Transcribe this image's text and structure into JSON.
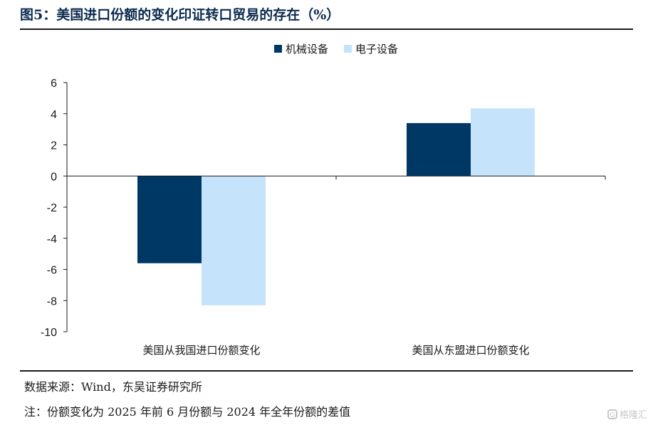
{
  "header": {
    "title": "图5：美国进口份额的变化印证转口贸易的存在（%）"
  },
  "chart_data": {
    "type": "bar",
    "title": "图5：美国进口份额的变化印证转口贸易的存在（%）",
    "categories": [
      "美国从我国进口份额变化",
      "美国从东盟进口份额变化"
    ],
    "series": [
      {
        "name": "机械设备",
        "values": [
          -5.6,
          3.4
        ],
        "color": "#003865"
      },
      {
        "name": "电子设备",
        "values": [
          -8.3,
          4.35
        ],
        "color": "#c5e3fa"
      }
    ],
    "xlabel": "",
    "ylabel": "",
    "ylim": [
      -10,
      6
    ],
    "yticks": [
      6,
      4,
      2,
      0,
      -2,
      -4,
      -6,
      -8,
      -10
    ],
    "grid": false,
    "legend": "top-center"
  },
  "footer": {
    "source": "数据来源：Wind，东吴证券研究所",
    "note": "注：份额变化为 2025 年前 6 月份额与 2024 年全年份额的差值"
  },
  "watermark": {
    "icon": "gelonghui-logo-icon",
    "text": "格隆汇"
  }
}
